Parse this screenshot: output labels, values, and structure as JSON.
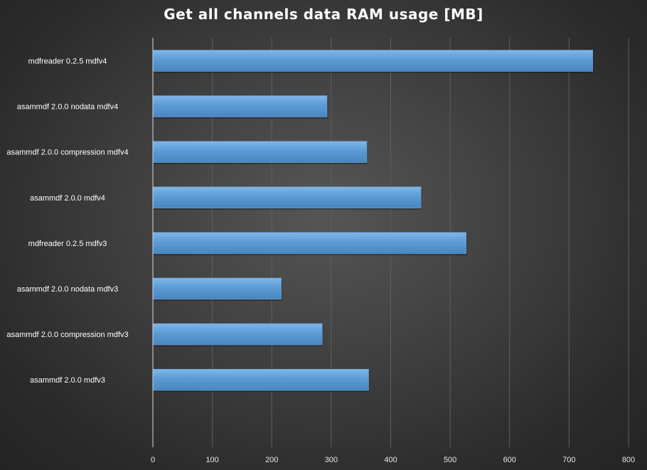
{
  "chart_data": {
    "type": "bar",
    "orientation": "horizontal",
    "title": "Get all channels data RAM usage [MB]",
    "xlabel": "",
    "ylabel": "",
    "categories": [
      "mdfreader 0.2.5 mdfv4",
      "asammdf 2.0.0 nodata mdfv4",
      "asammdf 2.0.0 compression mdfv4",
      "asammdf 2.0.0 mdfv4",
      "mdfreader 0.2.5 mdfv3",
      "asammdf 2.0.0 nodata mdfv3",
      "asammdf 2.0.0 compression mdfv3",
      "asammdf 2.0.0 mdfv3"
    ],
    "values": [
      740,
      293,
      360,
      451,
      527,
      216,
      285,
      363
    ],
    "xlim": [
      0,
      800
    ],
    "xticks": [
      "0",
      "100",
      "200",
      "300",
      "400",
      "500",
      "600",
      "700",
      "800"
    ],
    "grid": true,
    "legend": "none",
    "bar_color": "#5b9bd5"
  }
}
